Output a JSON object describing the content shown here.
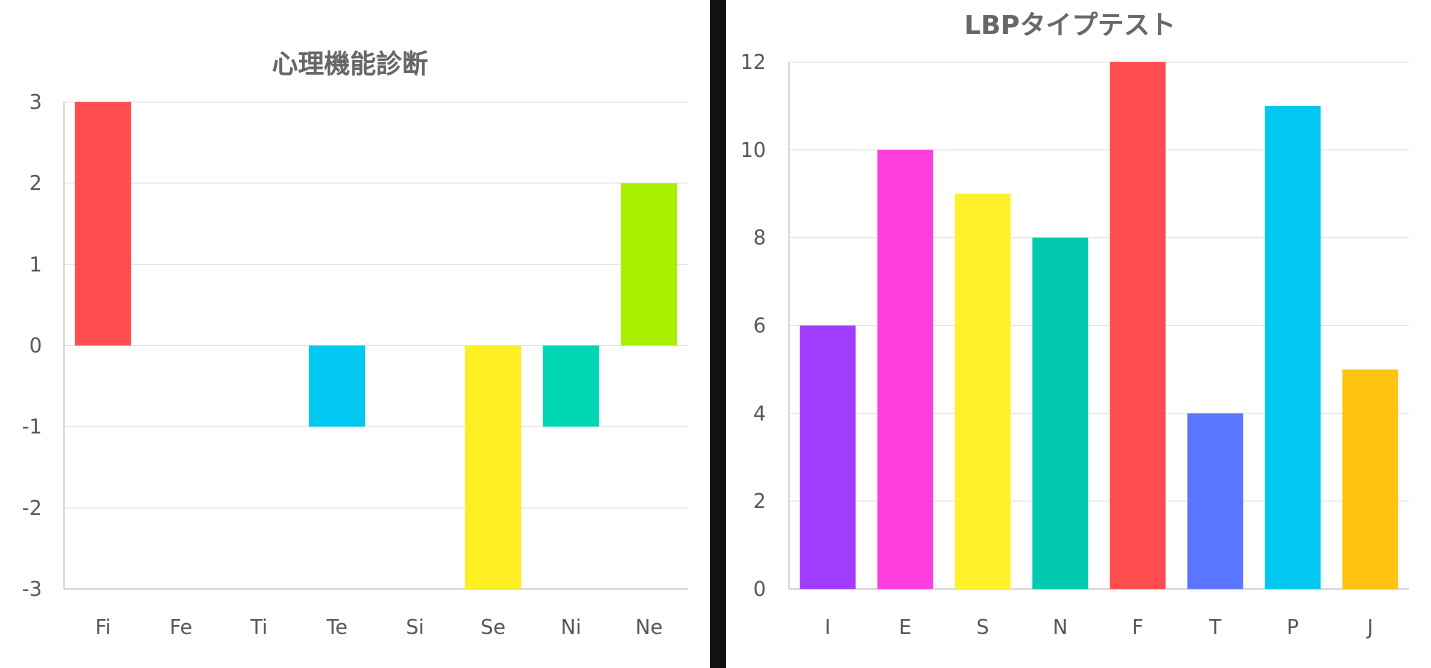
{
  "chart_data": [
    {
      "type": "bar",
      "title": "心理機能診断",
      "categories": [
        "Fi",
        "Fe",
        "Ti",
        "Te",
        "Si",
        "Se",
        "Ni",
        "Ne"
      ],
      "values": [
        3,
        0,
        0,
        -1,
        0,
        -3,
        -1,
        2
      ],
      "colors": [
        "#ff4d4f",
        "#ff4d4f",
        "#ff4d4f",
        "#00c8f0",
        "#ff4d4f",
        "#ffee22",
        "#00d6b3",
        "#a6f000"
      ],
      "ylim": [
        -3,
        3
      ],
      "yticks": [
        "3",
        "2",
        "1",
        "0",
        "-1",
        "-2",
        "-3"
      ],
      "grid": true,
      "legend": "none"
    },
    {
      "type": "bar",
      "title": "LBPタイプテスト",
      "categories": [
        "I",
        "E",
        "S",
        "N",
        "F",
        "T",
        "P",
        "J"
      ],
      "values": [
        6,
        10,
        9,
        8,
        12,
        4,
        11,
        5
      ],
      "colors": [
        "#a13dff",
        "#ff3ee0",
        "#fff02a",
        "#00c8b0",
        "#ff4d4f",
        "#5a75ff",
        "#00c8f0",
        "#ffc312"
      ],
      "ylim": [
        0,
        12
      ],
      "yticks": [
        "12",
        "10",
        "8",
        "6",
        "4",
        "2",
        "0"
      ],
      "grid": true,
      "legend": "none"
    }
  ]
}
